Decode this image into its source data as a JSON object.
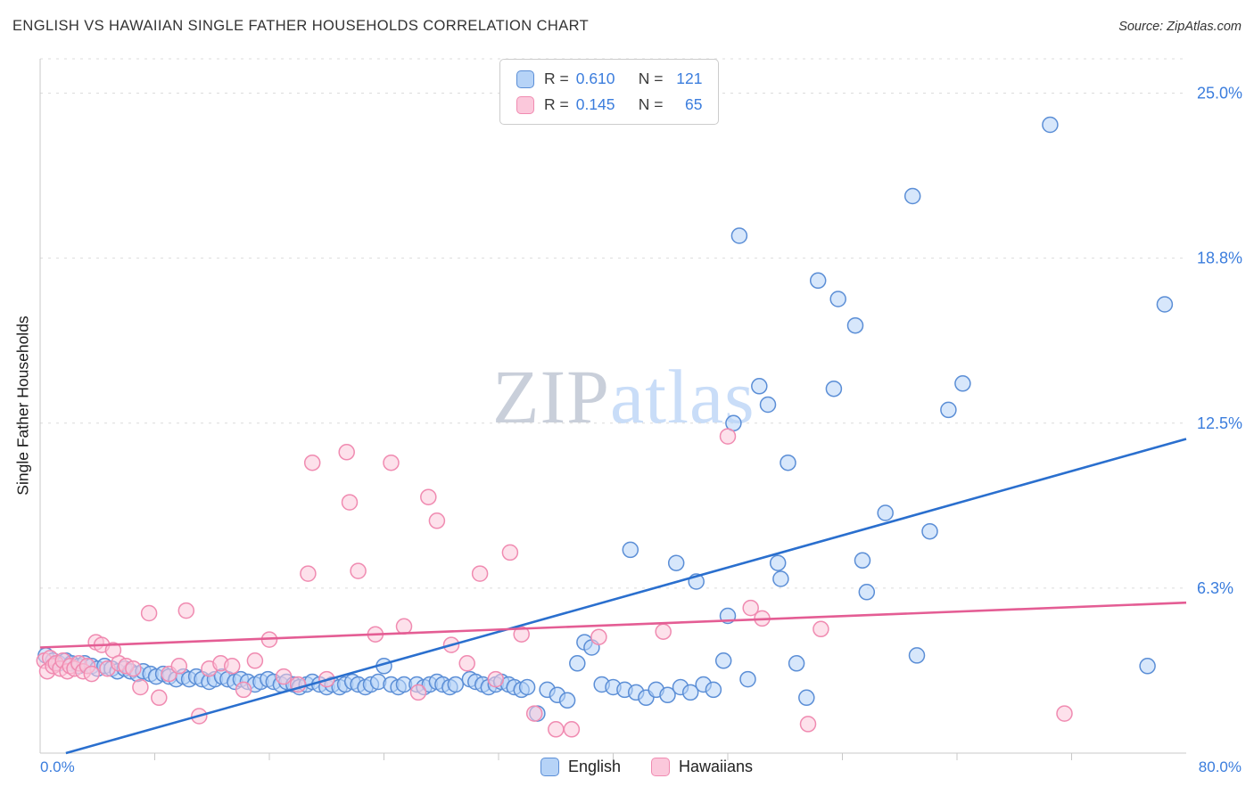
{
  "header": {
    "title": "ENGLISH VS HAWAIIAN SINGLE FATHER HOUSEHOLDS CORRELATION CHART",
    "source": "Source: ZipAtlas.com"
  },
  "watermark": {
    "zip": "ZIP",
    "atlas": "atlas"
  },
  "stats_legend": {
    "rows": [
      {
        "series": "English",
        "r_label": "R =",
        "r_value": "0.610",
        "n_label": "N =",
        "n_value": "121"
      },
      {
        "series": "Hawaiians",
        "r_label": "R =",
        "r_value": "0.145",
        "n_label": "N =",
        "n_value": "65"
      }
    ]
  },
  "series_legend": [
    {
      "label": "English"
    },
    {
      "label": "Hawaiians"
    }
  ],
  "axes": {
    "y_title": "Single Father Households",
    "x_start_label": "0.0%",
    "x_end_label": "80.0%"
  },
  "colors": {
    "accent_text": "#3b7ddd",
    "gridline": "#dcdcdc",
    "axis_line": "#c8c8c8",
    "english_fill": "#b6d3f7",
    "english_stroke": "#5b8ed6",
    "english_line": "#2a6fce",
    "hawaiians_fill": "#fbc8db",
    "hawaiians_stroke": "#f08bb1",
    "hawaiians_line": "#e45d94",
    "watermark_zip": "#c9cfda",
    "watermark_atlas": "#c9ddf8"
  },
  "chart_data": {
    "type": "scatter",
    "title": "ENGLISH VS HAWAIIAN SINGLE FATHER HOUSEHOLDS CORRELATION CHART",
    "ylabel": "Single Father Households",
    "units": "percent",
    "xlim": [
      0,
      80
    ],
    "ylim": [
      0,
      26.3
    ],
    "x_axis_labels": [
      "0.0%",
      "80.0%"
    ],
    "y_ticks": [
      {
        "value": 25.0,
        "label": "25.0%"
      },
      {
        "value": 18.75,
        "label": "18.8%"
      },
      {
        "value": 12.5,
        "label": "12.5%"
      },
      {
        "value": 6.25,
        "label": "6.3%"
      }
    ],
    "grid": "horizontal-dashed",
    "legend_position": "top-center",
    "series": [
      {
        "name": "English",
        "key": "english",
        "r": 0.61,
        "n": 121,
        "trend": {
          "x1": 1.8,
          "y1": 0.0,
          "x2": 80,
          "y2": 11.9
        },
        "points": [
          [
            0.4,
            3.7
          ],
          [
            0.9,
            3.5
          ],
          [
            1.3,
            3.4
          ],
          [
            1.8,
            3.5
          ],
          [
            2.2,
            3.4
          ],
          [
            2.7,
            3.3
          ],
          [
            3.1,
            3.4
          ],
          [
            3.6,
            3.3
          ],
          [
            4.0,
            3.2
          ],
          [
            4.5,
            3.3
          ],
          [
            5.0,
            3.2
          ],
          [
            5.4,
            3.1
          ],
          [
            5.9,
            3.2
          ],
          [
            6.3,
            3.1
          ],
          [
            6.8,
            3.0
          ],
          [
            7.2,
            3.1
          ],
          [
            7.7,
            3.0
          ],
          [
            8.1,
            2.9
          ],
          [
            8.6,
            3.0
          ],
          [
            9.0,
            2.9
          ],
          [
            9.5,
            2.8
          ],
          [
            10.0,
            2.9
          ],
          [
            10.4,
            2.8
          ],
          [
            10.9,
            2.9
          ],
          [
            11.3,
            2.8
          ],
          [
            11.8,
            2.7
          ],
          [
            12.2,
            2.8
          ],
          [
            12.7,
            2.9
          ],
          [
            13.1,
            2.8
          ],
          [
            13.6,
            2.7
          ],
          [
            14.0,
            2.8
          ],
          [
            14.5,
            2.7
          ],
          [
            15.0,
            2.6
          ],
          [
            15.4,
            2.7
          ],
          [
            15.9,
            2.8
          ],
          [
            16.3,
            2.7
          ],
          [
            16.8,
            2.6
          ],
          [
            17.2,
            2.7
          ],
          [
            17.7,
            2.6
          ],
          [
            18.1,
            2.5
          ],
          [
            18.6,
            2.6
          ],
          [
            19.0,
            2.7
          ],
          [
            19.5,
            2.6
          ],
          [
            20.0,
            2.5
          ],
          [
            20.4,
            2.6
          ],
          [
            20.9,
            2.5
          ],
          [
            21.3,
            2.6
          ],
          [
            21.8,
            2.7
          ],
          [
            22.2,
            2.6
          ],
          [
            22.7,
            2.5
          ],
          [
            23.1,
            2.6
          ],
          [
            23.6,
            2.7
          ],
          [
            24.0,
            3.3
          ],
          [
            24.5,
            2.6
          ],
          [
            25.0,
            2.5
          ],
          [
            25.4,
            2.6
          ],
          [
            26.3,
            2.6
          ],
          [
            26.8,
            2.5
          ],
          [
            27.2,
            2.6
          ],
          [
            27.7,
            2.7
          ],
          [
            28.1,
            2.6
          ],
          [
            28.6,
            2.5
          ],
          [
            29.0,
            2.6
          ],
          [
            30.0,
            2.8
          ],
          [
            30.4,
            2.7
          ],
          [
            30.9,
            2.6
          ],
          [
            31.3,
            2.5
          ],
          [
            31.8,
            2.6
          ],
          [
            32.2,
            2.7
          ],
          [
            32.7,
            2.6
          ],
          [
            33.1,
            2.5
          ],
          [
            33.6,
            2.4
          ],
          [
            34.0,
            2.5
          ],
          [
            34.7,
            1.5
          ],
          [
            35.4,
            2.4
          ],
          [
            36.1,
            2.2
          ],
          [
            36.8,
            2.0
          ],
          [
            37.5,
            3.4
          ],
          [
            38.0,
            4.2
          ],
          [
            38.5,
            4.0
          ],
          [
            39.2,
            2.6
          ],
          [
            40.0,
            2.5
          ],
          [
            40.8,
            2.4
          ],
          [
            41.2,
            7.7
          ],
          [
            41.6,
            2.3
          ],
          [
            42.3,
            2.1
          ],
          [
            43.0,
            2.4
          ],
          [
            43.8,
            2.2
          ],
          [
            44.4,
            7.2
          ],
          [
            44.7,
            2.5
          ],
          [
            45.4,
            2.3
          ],
          [
            45.8,
            6.5
          ],
          [
            46.3,
            2.6
          ],
          [
            47.0,
            2.4
          ],
          [
            47.7,
            3.5
          ],
          [
            48.0,
            5.2
          ],
          [
            48.4,
            12.5
          ],
          [
            48.8,
            19.6
          ],
          [
            49.4,
            2.8
          ],
          [
            50.2,
            13.9
          ],
          [
            50.8,
            13.2
          ],
          [
            51.5,
            7.2
          ],
          [
            51.7,
            6.6
          ],
          [
            52.2,
            11.0
          ],
          [
            52.8,
            3.4
          ],
          [
            53.5,
            2.1
          ],
          [
            54.3,
            17.9
          ],
          [
            55.4,
            13.8
          ],
          [
            55.7,
            17.2
          ],
          [
            56.9,
            16.2
          ],
          [
            57.4,
            7.3
          ],
          [
            57.7,
            6.1
          ],
          [
            59.0,
            9.1
          ],
          [
            60.9,
            21.1
          ],
          [
            61.2,
            3.7
          ],
          [
            62.1,
            8.4
          ],
          [
            63.4,
            13.0
          ],
          [
            64.4,
            14.0
          ],
          [
            70.5,
            23.8
          ],
          [
            77.3,
            3.3
          ],
          [
            78.5,
            17.0
          ]
        ]
      },
      {
        "name": "Hawaiians",
        "key": "hawaiians",
        "r": 0.145,
        "n": 65,
        "trend": {
          "x1": 0,
          "y1": 4.0,
          "x2": 80,
          "y2": 5.7
        },
        "points": [
          [
            0.3,
            3.5
          ],
          [
            0.5,
            3.1
          ],
          [
            0.7,
            3.6
          ],
          [
            0.9,
            3.3
          ],
          [
            1.1,
            3.4
          ],
          [
            1.4,
            3.2
          ],
          [
            1.6,
            3.5
          ],
          [
            1.9,
            3.1
          ],
          [
            2.1,
            3.3
          ],
          [
            2.4,
            3.2
          ],
          [
            2.7,
            3.4
          ],
          [
            3.0,
            3.1
          ],
          [
            3.3,
            3.3
          ],
          [
            3.6,
            3.0
          ],
          [
            3.9,
            4.2
          ],
          [
            4.3,
            4.1
          ],
          [
            4.7,
            3.2
          ],
          [
            5.1,
            3.9
          ],
          [
            5.5,
            3.4
          ],
          [
            6.0,
            3.3
          ],
          [
            6.5,
            3.2
          ],
          [
            7.0,
            2.5
          ],
          [
            7.6,
            5.3
          ],
          [
            8.3,
            2.1
          ],
          [
            9.0,
            3.0
          ],
          [
            9.7,
            3.3
          ],
          [
            10.2,
            5.4
          ],
          [
            11.1,
            1.4
          ],
          [
            11.8,
            3.2
          ],
          [
            12.6,
            3.4
          ],
          [
            13.4,
            3.3
          ],
          [
            14.2,
            2.4
          ],
          [
            15.0,
            3.5
          ],
          [
            16.0,
            4.3
          ],
          [
            17.0,
            2.9
          ],
          [
            18.0,
            2.6
          ],
          [
            18.7,
            6.8
          ],
          [
            19.0,
            11.0
          ],
          [
            20.0,
            2.8
          ],
          [
            21.4,
            11.4
          ],
          [
            21.6,
            9.5
          ],
          [
            22.2,
            6.9
          ],
          [
            23.4,
            4.5
          ],
          [
            24.5,
            11.0
          ],
          [
            25.4,
            4.8
          ],
          [
            26.4,
            2.3
          ],
          [
            27.1,
            9.7
          ],
          [
            27.7,
            8.8
          ],
          [
            28.7,
            4.1
          ],
          [
            29.8,
            3.4
          ],
          [
            30.7,
            6.8
          ],
          [
            31.8,
            2.8
          ],
          [
            32.8,
            7.6
          ],
          [
            33.6,
            4.5
          ],
          [
            34.5,
            1.5
          ],
          [
            36.0,
            0.9
          ],
          [
            37.1,
            0.9
          ],
          [
            39.0,
            4.4
          ],
          [
            43.5,
            4.6
          ],
          [
            48.0,
            12.0
          ],
          [
            49.6,
            5.5
          ],
          [
            50.4,
            5.1
          ],
          [
            53.6,
            1.1
          ],
          [
            54.5,
            4.7
          ],
          [
            71.5,
            1.5
          ]
        ]
      }
    ]
  }
}
